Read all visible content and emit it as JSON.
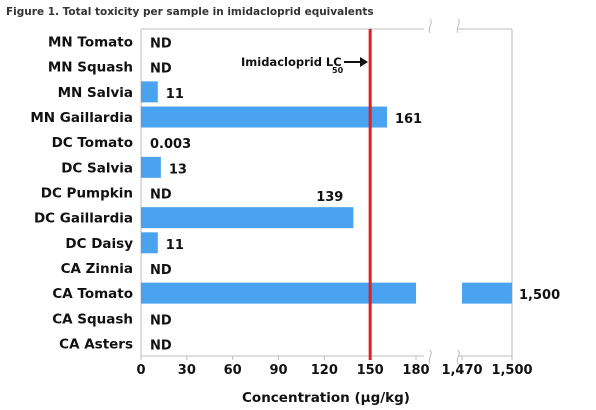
{
  "title": "Figure 1. Total toxicity per sample in imidacloprid equivalents",
  "chart_data": {
    "type": "bar",
    "orientation": "horizontal",
    "title": "Figure 1. Total toxicity per sample in imidacloprid equivalents",
    "xlabel": "Concentration (μg/kg)",
    "ylabel": "",
    "categories": [
      "MN Tomato",
      "MN Squash",
      "MN Salvia",
      "MN Gaillardia",
      "DC Tomato",
      "DC Salvia",
      "DC Pumpkin",
      "DC Gaillardia",
      "DC Daisy",
      "CA Zinnia",
      "CA Tomato",
      "CA Squash",
      "CA Asters"
    ],
    "values": [
      0,
      0,
      11,
      161,
      0.003,
      13,
      0,
      139,
      11,
      0,
      1500,
      0,
      0
    ],
    "labels": [
      "ND",
      "ND",
      "11",
      "161",
      "0.003",
      "13",
      "ND",
      "139",
      "11",
      "ND",
      "1,500",
      "ND",
      "ND"
    ],
    "xlim": [
      0,
      1500
    ],
    "axis_break": [
      180,
      1470
    ],
    "xticks": [
      "0",
      "30",
      "60",
      "90",
      "120",
      "150",
      "180",
      "1,470",
      "1,500"
    ],
    "bar_color": "#4aa3f0",
    "grid": false,
    "reference_line": {
      "value": 150,
      "color": "#e02020",
      "label": "Imidacloprid LC",
      "label_subscript": "50"
    }
  }
}
